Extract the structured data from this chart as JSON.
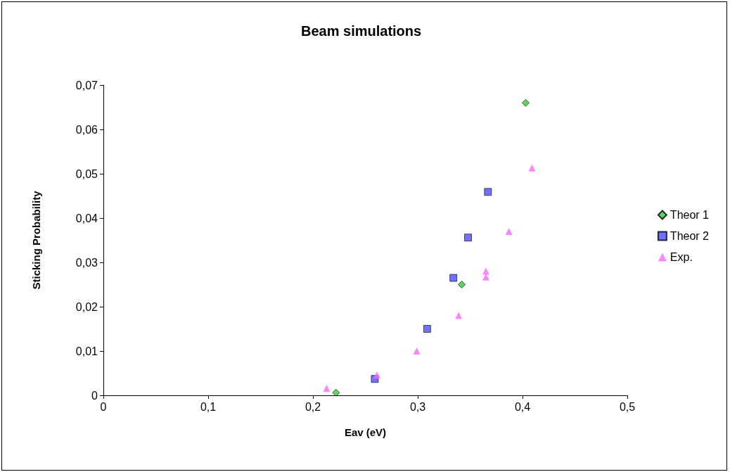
{
  "chart_data": {
    "type": "scatter",
    "title": "Beam simulations",
    "xlabel": "Eav (eV)",
    "ylabel": "Sticking Probability",
    "xlim": [
      0,
      0.5
    ],
    "xticks": [
      0,
      {
        "value": 0.1,
        "label": "0,1"
      },
      {
        "value": 0.2,
        "label": "0,2"
      },
      {
        "value": 0.3,
        "label": "0,3"
      },
      {
        "value": 0.4,
        "label": "0,4"
      },
      {
        "value": 0.5,
        "label": "0,5"
      }
    ],
    "ylim": [
      0,
      0.07
    ],
    "yticks": [
      0,
      {
        "value": 0.01,
        "label": "0,01"
      },
      {
        "value": 0.02,
        "label": "0,02"
      },
      {
        "value": 0.03,
        "label": "0,03"
      },
      {
        "value": 0.04,
        "label": "0,04"
      },
      {
        "value": 0.05,
        "label": "0,05"
      },
      {
        "value": 0.06,
        "label": "0,06"
      },
      {
        "value": 0.07,
        "label": "0,07"
      }
    ],
    "grid": false,
    "legend": "right",
    "series": [
      {
        "name": "Theor 1",
        "color": "#33cc33",
        "marker": "diamond",
        "x": [
          0.222,
          0.342,
          0.403
        ],
        "values": [
          0.0006,
          0.025,
          0.066
        ]
      },
      {
        "name": "Theor 2",
        "color": "#4d4dff",
        "marker": "square",
        "x": [
          0.259,
          0.309,
          0.334,
          0.348,
          0.367
        ],
        "values": [
          0.0037,
          0.015,
          0.0265,
          0.0356,
          0.0459
        ]
      },
      {
        "name": "Exp.",
        "color": "#ff66ff",
        "marker": "triangle",
        "x": [
          0.213,
          0.261,
          0.299,
          0.339,
          0.365,
          0.365,
          0.387,
          0.409
        ],
        "values": [
          0.0016,
          0.0046,
          0.01,
          0.018,
          0.028,
          0.0267,
          0.037,
          0.0513
        ]
      }
    ]
  }
}
